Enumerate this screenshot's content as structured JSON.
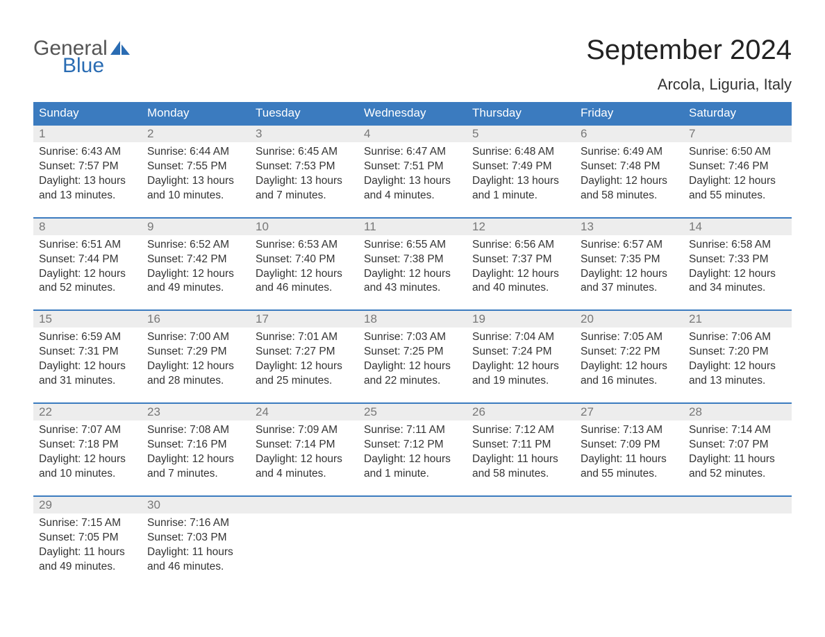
{
  "logo": {
    "general": "General",
    "blue": "Blue",
    "sail_color": "#2a6cb3"
  },
  "title": "September 2024",
  "subtitle": "Arcola, Liguria, Italy",
  "header_bg": "#3b7bbf",
  "day_num_bg": "#ededed",
  "weekdays": [
    "Sunday",
    "Monday",
    "Tuesday",
    "Wednesday",
    "Thursday",
    "Friday",
    "Saturday"
  ],
  "weeks": [
    [
      {
        "n": "1",
        "sunrise": "Sunrise: 6:43 AM",
        "sunset": "Sunset: 7:57 PM",
        "d1": "Daylight: 13 hours",
        "d2": "and 13 minutes."
      },
      {
        "n": "2",
        "sunrise": "Sunrise: 6:44 AM",
        "sunset": "Sunset: 7:55 PM",
        "d1": "Daylight: 13 hours",
        "d2": "and 10 minutes."
      },
      {
        "n": "3",
        "sunrise": "Sunrise: 6:45 AM",
        "sunset": "Sunset: 7:53 PM",
        "d1": "Daylight: 13 hours",
        "d2": "and 7 minutes."
      },
      {
        "n": "4",
        "sunrise": "Sunrise: 6:47 AM",
        "sunset": "Sunset: 7:51 PM",
        "d1": "Daylight: 13 hours",
        "d2": "and 4 minutes."
      },
      {
        "n": "5",
        "sunrise": "Sunrise: 6:48 AM",
        "sunset": "Sunset: 7:49 PM",
        "d1": "Daylight: 13 hours",
        "d2": "and 1 minute."
      },
      {
        "n": "6",
        "sunrise": "Sunrise: 6:49 AM",
        "sunset": "Sunset: 7:48 PM",
        "d1": "Daylight: 12 hours",
        "d2": "and 58 minutes."
      },
      {
        "n": "7",
        "sunrise": "Sunrise: 6:50 AM",
        "sunset": "Sunset: 7:46 PM",
        "d1": "Daylight: 12 hours",
        "d2": "and 55 minutes."
      }
    ],
    [
      {
        "n": "8",
        "sunrise": "Sunrise: 6:51 AM",
        "sunset": "Sunset: 7:44 PM",
        "d1": "Daylight: 12 hours",
        "d2": "and 52 minutes."
      },
      {
        "n": "9",
        "sunrise": "Sunrise: 6:52 AM",
        "sunset": "Sunset: 7:42 PM",
        "d1": "Daylight: 12 hours",
        "d2": "and 49 minutes."
      },
      {
        "n": "10",
        "sunrise": "Sunrise: 6:53 AM",
        "sunset": "Sunset: 7:40 PM",
        "d1": "Daylight: 12 hours",
        "d2": "and 46 minutes."
      },
      {
        "n": "11",
        "sunrise": "Sunrise: 6:55 AM",
        "sunset": "Sunset: 7:38 PM",
        "d1": "Daylight: 12 hours",
        "d2": "and 43 minutes."
      },
      {
        "n": "12",
        "sunrise": "Sunrise: 6:56 AM",
        "sunset": "Sunset: 7:37 PM",
        "d1": "Daylight: 12 hours",
        "d2": "and 40 minutes."
      },
      {
        "n": "13",
        "sunrise": "Sunrise: 6:57 AM",
        "sunset": "Sunset: 7:35 PM",
        "d1": "Daylight: 12 hours",
        "d2": "and 37 minutes."
      },
      {
        "n": "14",
        "sunrise": "Sunrise: 6:58 AM",
        "sunset": "Sunset: 7:33 PM",
        "d1": "Daylight: 12 hours",
        "d2": "and 34 minutes."
      }
    ],
    [
      {
        "n": "15",
        "sunrise": "Sunrise: 6:59 AM",
        "sunset": "Sunset: 7:31 PM",
        "d1": "Daylight: 12 hours",
        "d2": "and 31 minutes."
      },
      {
        "n": "16",
        "sunrise": "Sunrise: 7:00 AM",
        "sunset": "Sunset: 7:29 PM",
        "d1": "Daylight: 12 hours",
        "d2": "and 28 minutes."
      },
      {
        "n": "17",
        "sunrise": "Sunrise: 7:01 AM",
        "sunset": "Sunset: 7:27 PM",
        "d1": "Daylight: 12 hours",
        "d2": "and 25 minutes."
      },
      {
        "n": "18",
        "sunrise": "Sunrise: 7:03 AM",
        "sunset": "Sunset: 7:25 PM",
        "d1": "Daylight: 12 hours",
        "d2": "and 22 minutes."
      },
      {
        "n": "19",
        "sunrise": "Sunrise: 7:04 AM",
        "sunset": "Sunset: 7:24 PM",
        "d1": "Daylight: 12 hours",
        "d2": "and 19 minutes."
      },
      {
        "n": "20",
        "sunrise": "Sunrise: 7:05 AM",
        "sunset": "Sunset: 7:22 PM",
        "d1": "Daylight: 12 hours",
        "d2": "and 16 minutes."
      },
      {
        "n": "21",
        "sunrise": "Sunrise: 7:06 AM",
        "sunset": "Sunset: 7:20 PM",
        "d1": "Daylight: 12 hours",
        "d2": "and 13 minutes."
      }
    ],
    [
      {
        "n": "22",
        "sunrise": "Sunrise: 7:07 AM",
        "sunset": "Sunset: 7:18 PM",
        "d1": "Daylight: 12 hours",
        "d2": "and 10 minutes."
      },
      {
        "n": "23",
        "sunrise": "Sunrise: 7:08 AM",
        "sunset": "Sunset: 7:16 PM",
        "d1": "Daylight: 12 hours",
        "d2": "and 7 minutes."
      },
      {
        "n": "24",
        "sunrise": "Sunrise: 7:09 AM",
        "sunset": "Sunset: 7:14 PM",
        "d1": "Daylight: 12 hours",
        "d2": "and 4 minutes."
      },
      {
        "n": "25",
        "sunrise": "Sunrise: 7:11 AM",
        "sunset": "Sunset: 7:12 PM",
        "d1": "Daylight: 12 hours",
        "d2": "and 1 minute."
      },
      {
        "n": "26",
        "sunrise": "Sunrise: 7:12 AM",
        "sunset": "Sunset: 7:11 PM",
        "d1": "Daylight: 11 hours",
        "d2": "and 58 minutes."
      },
      {
        "n": "27",
        "sunrise": "Sunrise: 7:13 AM",
        "sunset": "Sunset: 7:09 PM",
        "d1": "Daylight: 11 hours",
        "d2": "and 55 minutes."
      },
      {
        "n": "28",
        "sunrise": "Sunrise: 7:14 AM",
        "sunset": "Sunset: 7:07 PM",
        "d1": "Daylight: 11 hours",
        "d2": "and 52 minutes."
      }
    ],
    [
      {
        "n": "29",
        "sunrise": "Sunrise: 7:15 AM",
        "sunset": "Sunset: 7:05 PM",
        "d1": "Daylight: 11 hours",
        "d2": "and 49 minutes."
      },
      {
        "n": "30",
        "sunrise": "Sunrise: 7:16 AM",
        "sunset": "Sunset: 7:03 PM",
        "d1": "Daylight: 11 hours",
        "d2": "and 46 minutes."
      },
      null,
      null,
      null,
      null,
      null
    ]
  ]
}
